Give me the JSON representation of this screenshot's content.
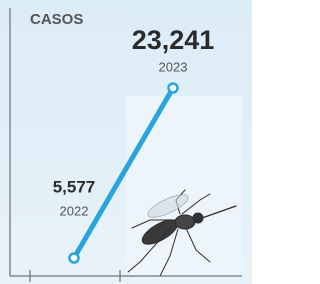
{
  "chart_data": {
    "type": "line",
    "title": "CASOS",
    "categories": [
      "2022",
      "2023"
    ],
    "series": [
      {
        "color": "#2aa4dd",
        "values": [
          5577,
          23241
        ],
        "value_labels": [
          "5,577",
          "23,241"
        ]
      }
    ]
  }
}
